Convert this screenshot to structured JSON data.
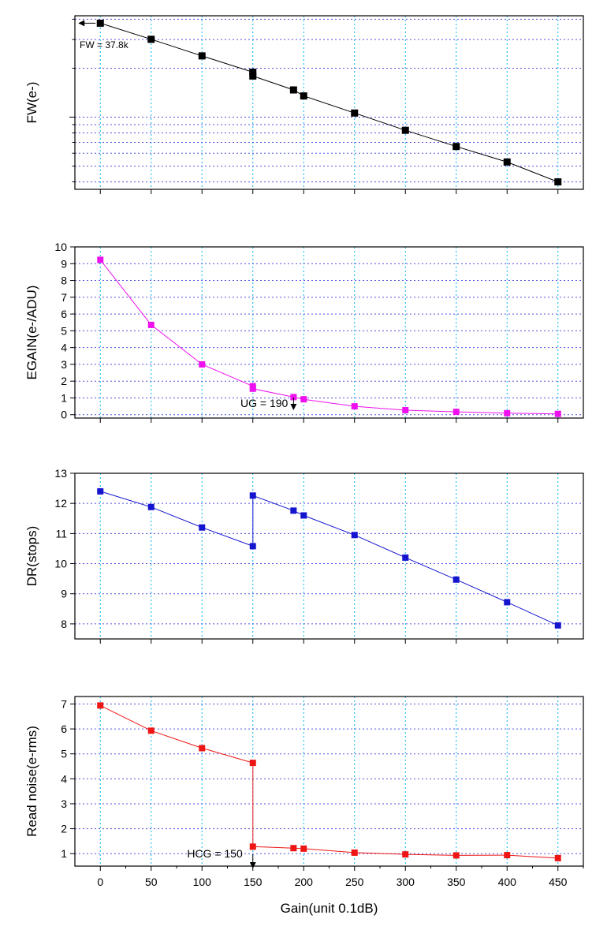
{
  "chart_data": {
    "type": "line",
    "x_axis": {
      "label": "Gain(unit 0.1dB)",
      "ticks": [
        0,
        50,
        100,
        150,
        200,
        250,
        300,
        350,
        400,
        450
      ],
      "tick_labels": [
        "0",
        "50",
        "100",
        "150",
        "200",
        "250",
        "300",
        "350",
        "400",
        "450"
      ],
      "range": [
        -25,
        475
      ]
    },
    "grid": {
      "vertical": true,
      "horizontal": true,
      "vertical_color": "#00b8f0",
      "horizontal_color": "#5050e0"
    },
    "panels": [
      {
        "ylabel": "FW(e-)",
        "y_scale": "log",
        "color": "#000000",
        "tick_labels_visible": false,
        "annotation": "FW = 37.8k",
        "x": [
          0,
          50,
          100,
          150,
          150,
          190,
          200,
          250,
          300,
          350,
          400,
          450
        ],
        "values": [
          37800,
          30100,
          23800,
          18900,
          17900,
          14700,
          13500,
          10600,
          8300,
          6600,
          5300,
          4000
        ]
      },
      {
        "ylabel": "EGAIN(e-/ADU)",
        "y_scale": "linear",
        "ylim": [
          -0.2,
          10
        ],
        "ticks": [
          0,
          1,
          2,
          3,
          4,
          5,
          6,
          7,
          8,
          9,
          10
        ],
        "tick_labels": [
          "0",
          "1",
          "2",
          "3",
          "4",
          "5",
          "6",
          "7",
          "8",
          "9",
          "10"
        ],
        "color": "#ee10ee",
        "annotation": "UG = 190",
        "x": [
          0,
          50,
          100,
          150,
          150,
          190,
          200,
          250,
          300,
          350,
          400,
          450
        ],
        "values": [
          9.23,
          5.35,
          3.0,
          1.7,
          1.55,
          1.05,
          0.92,
          0.5,
          0.27,
          0.17,
          0.09,
          0.05
        ]
      },
      {
        "ylabel": "DR(stops)",
        "y_scale": "linear",
        "ylim": [
          7.5,
          13
        ],
        "ticks": [
          8,
          9,
          10,
          11,
          12,
          13
        ],
        "tick_labels": [
          "8",
          "9",
          "10",
          "11",
          "12",
          "13"
        ],
        "color": "#1515d0",
        "x": [
          0,
          50,
          100,
          150,
          150,
          190,
          200,
          250,
          300,
          350,
          400,
          450
        ],
        "values": [
          12.4,
          11.88,
          11.2,
          10.58,
          12.26,
          11.76,
          11.6,
          10.95,
          10.2,
          9.47,
          8.72,
          7.95
        ]
      },
      {
        "ylabel": "Read noise(e-rms)",
        "y_scale": "linear",
        "ylim": [
          0.5,
          7.3
        ],
        "ticks": [
          1,
          2,
          3,
          4,
          5,
          6,
          7
        ],
        "tick_labels": [
          "1",
          "2",
          "3",
          "4",
          "5",
          "6",
          "7"
        ],
        "color": "#ee1515",
        "annotation": "HCG = 150",
        "x": [
          0,
          50,
          100,
          150,
          150,
          190,
          200,
          250,
          300,
          350,
          400,
          450
        ],
        "values": [
          6.94,
          5.93,
          5.23,
          4.64,
          1.28,
          1.22,
          1.2,
          1.04,
          0.97,
          0.93,
          0.94,
          0.82
        ]
      }
    ]
  }
}
